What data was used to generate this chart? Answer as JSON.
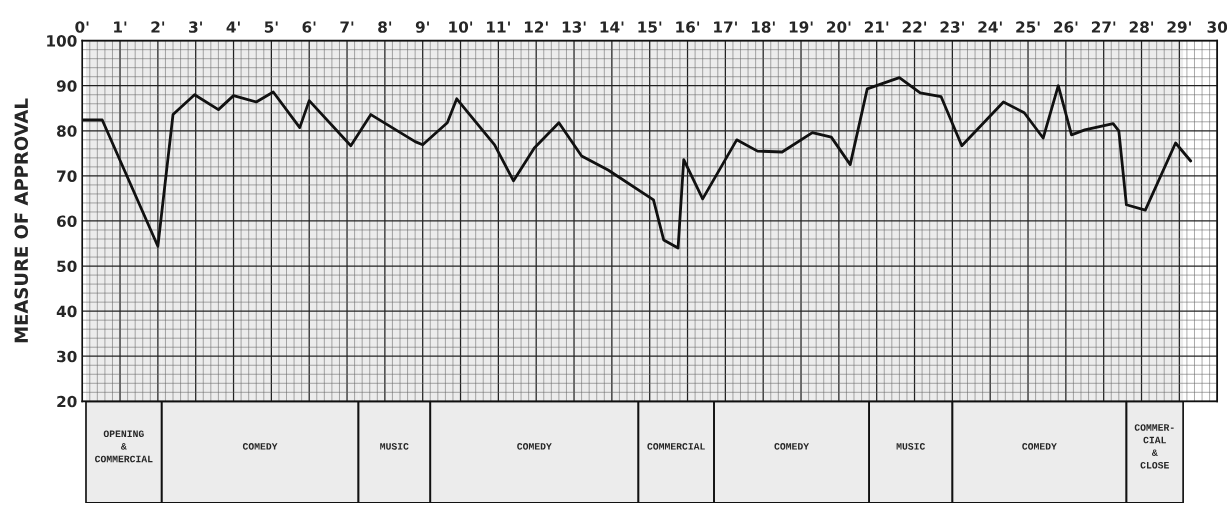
{
  "chart_data": {
    "type": "line",
    "ylabel": "MEASURE OF APPROVAL",
    "x": [
      0,
      0.53,
      2.0,
      2.4,
      2.97,
      3.6,
      4.0,
      4.6,
      5.05,
      5.75,
      6.0,
      7.1,
      7.63,
      8.8,
      9.0,
      9.65,
      9.9,
      10.9,
      11.4,
      11.95,
      12.6,
      13.2,
      13.9,
      15.1,
      15.37,
      15.75,
      15.9,
      16.4,
      17.3,
      17.85,
      18.5,
      19.3,
      19.8,
      20.3,
      20.75,
      21.05,
      21.6,
      22.15,
      22.7,
      23.25,
      24.35,
      24.9,
      25.4,
      25.8,
      26.15,
      26.5,
      27.25,
      27.4,
      27.6,
      28.1,
      28.9,
      29.3
    ],
    "series": [
      {
        "color": "#111111",
        "values": [
          82.4,
          82.4,
          54.4,
          83.6,
          88,
          84.7,
          87.8,
          86.4,
          88.6,
          80.7,
          86.7,
          76.7,
          83.6,
          77.6,
          76.9,
          81.8,
          87.1,
          76.9,
          68.9,
          76.2,
          81.8,
          74.4,
          71.3,
          64.7,
          55.8,
          54,
          73.6,
          64.9,
          78,
          75.5,
          75.3,
          79.6,
          78.6,
          72.5,
          89.3,
          90.2,
          91.8,
          88.4,
          87.6,
          76.7,
          86.4,
          84,
          78.4,
          90,
          79.1,
          80.2,
          81.6,
          80,
          63.6,
          62.4,
          77.3,
          73.3
        ]
      }
    ],
    "xlim": [
      0,
      30
    ],
    "xticks": [
      {
        "value": 0,
        "label": "0'"
      },
      {
        "value": 1,
        "label": "1'"
      },
      {
        "value": 2,
        "label": "2'"
      },
      {
        "value": 3,
        "label": "3'"
      },
      {
        "value": 4,
        "label": "4'"
      },
      {
        "value": 5,
        "label": "5'"
      },
      {
        "value": 6,
        "label": "6'"
      },
      {
        "value": 7,
        "label": "7'"
      },
      {
        "value": 8,
        "label": "8'"
      },
      {
        "value": 9,
        "label": "9'"
      },
      {
        "value": 10,
        "label": "10'"
      },
      {
        "value": 11,
        "label": "11'"
      },
      {
        "value": 12,
        "label": "12'"
      },
      {
        "value": 13,
        "label": "13'"
      },
      {
        "value": 14,
        "label": "14'"
      },
      {
        "value": 15,
        "label": "15'"
      },
      {
        "value": 16,
        "label": "16'"
      },
      {
        "value": 17,
        "label": "17'"
      },
      {
        "value": 18,
        "label": "18'"
      },
      {
        "value": 19,
        "label": "19'"
      },
      {
        "value": 20,
        "label": "20'"
      },
      {
        "value": 21,
        "label": "21'"
      },
      {
        "value": 22,
        "label": "22'"
      },
      {
        "value": 23,
        "label": "23'"
      },
      {
        "value": 24,
        "label": "24'"
      },
      {
        "value": 25,
        "label": "25'"
      },
      {
        "value": 26,
        "label": "26'"
      },
      {
        "value": 27,
        "label": "27'"
      },
      {
        "value": 28,
        "label": "28'"
      },
      {
        "value": 29,
        "label": "29'"
      },
      30
    ],
    "ylim": [
      20,
      100
    ],
    "yticks": [
      20,
      30,
      40,
      50,
      60,
      70,
      80,
      90,
      100
    ],
    "grid": true,
    "marker": "none",
    "line_style": "solid",
    "bands": [
      {
        "axis": "x",
        "from": 0.1,
        "to": 2.1,
        "label": "OPENING\n&\nCOMMERCIAL"
      },
      {
        "axis": "x",
        "from": 2.1,
        "to": 7.3,
        "label": "COMEDY"
      },
      {
        "axis": "x",
        "from": 7.3,
        "to": 9.2,
        "label": "MUSIC"
      },
      {
        "axis": "x",
        "from": 9.2,
        "to": 14.7,
        "label": "COMEDY"
      },
      {
        "axis": "x",
        "from": 14.7,
        "to": 16.7,
        "label": "COMMERCIAL"
      },
      {
        "axis": "x",
        "from": 16.7,
        "to": 20.8,
        "label": "COMEDY"
      },
      {
        "axis": "x",
        "from": 20.8,
        "to": 23.0,
        "label": "MUSIC"
      },
      {
        "axis": "x",
        "from": 23.0,
        "to": 27.6,
        "label": "COMEDY"
      },
      {
        "axis": "x",
        "from": 27.6,
        "to": 29.1,
        "label": "COMMER-\nCIAL\n&\nCLOSE"
      }
    ]
  }
}
